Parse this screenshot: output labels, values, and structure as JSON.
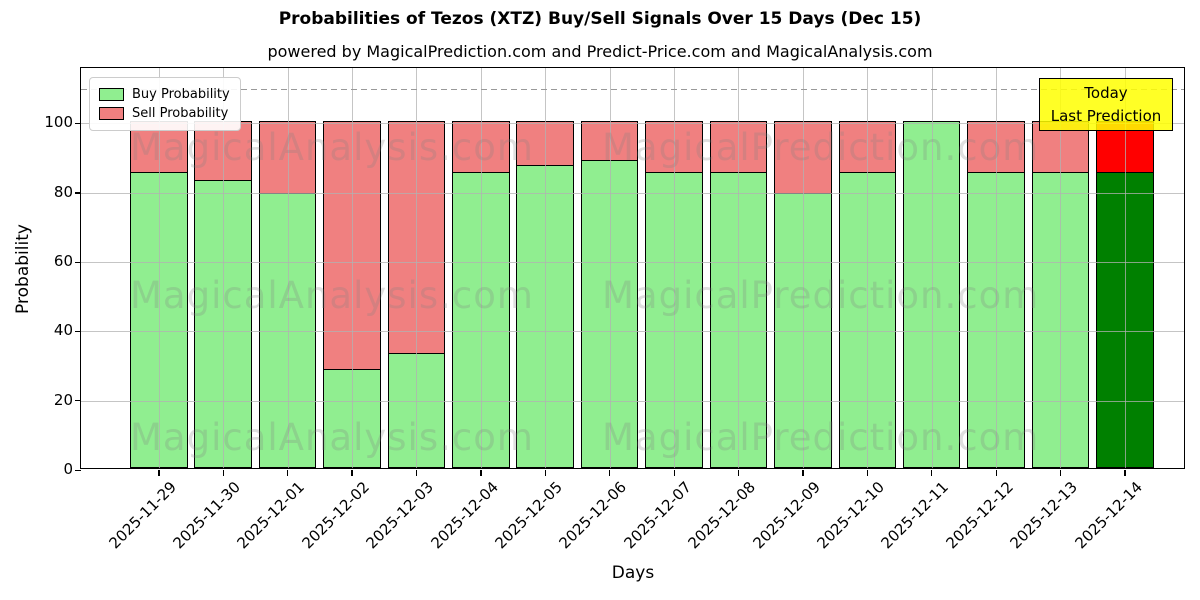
{
  "chart_data": {
    "type": "bar",
    "stacked": true,
    "title": "Probabilities of Tezos (XTZ) Buy/Sell Signals Over 15 Days (Dec 15)",
    "subtitle": "powered by MagicalPrediction.com and Predict-Price.com and MagicalAnalysis.com",
    "xlabel": "Days",
    "ylabel": "Probability",
    "categories": [
      "2025-11-29",
      "2025-11-30",
      "2025-12-01",
      "2025-12-02",
      "2025-12-03",
      "2025-12-04",
      "2025-12-05",
      "2025-12-06",
      "2025-12-07",
      "2025-12-08",
      "2025-12-09",
      "2025-12-10",
      "2025-12-11",
      "2025-12-12",
      "2025-12-13",
      "2025-12-14"
    ],
    "series": [
      {
        "name": "Buy Probability",
        "color": "#90EE90",
        "values": [
          85.5,
          83.3,
          79.5,
          28.6,
          33.3,
          85.5,
          87.5,
          89.0,
          85.5,
          85.5,
          79.5,
          85.5,
          100.0,
          85.5,
          85.5,
          85.5
        ]
      },
      {
        "name": "Sell Probability",
        "color": "#F08080",
        "values": [
          14.5,
          16.7,
          20.5,
          71.4,
          66.7,
          14.5,
          12.5,
          11.0,
          14.5,
          14.5,
          20.5,
          14.5,
          0.0,
          14.5,
          14.5,
          14.5
        ]
      }
    ],
    "today_bar": {
      "category": "2025-12-14",
      "index": 15,
      "buy_color": "#008000",
      "sell_color": "#FF0000"
    },
    "annotation": {
      "lines": [
        "Today",
        "Last Prediction"
      ],
      "bg_color": "#FFFF00",
      "border_color": "#000000"
    },
    "dashed_guideline_y": 110,
    "ylim": [
      0,
      116
    ],
    "yticks": [
      0,
      20,
      40,
      60,
      80,
      100
    ],
    "grid": true,
    "legend_position": "upper-left",
    "watermarks": {
      "left_text": "MagicalAnalysis.com",
      "right_text": "MagicalPrediction.com",
      "row_count": 3,
      "color": "#7f7f7f"
    }
  }
}
